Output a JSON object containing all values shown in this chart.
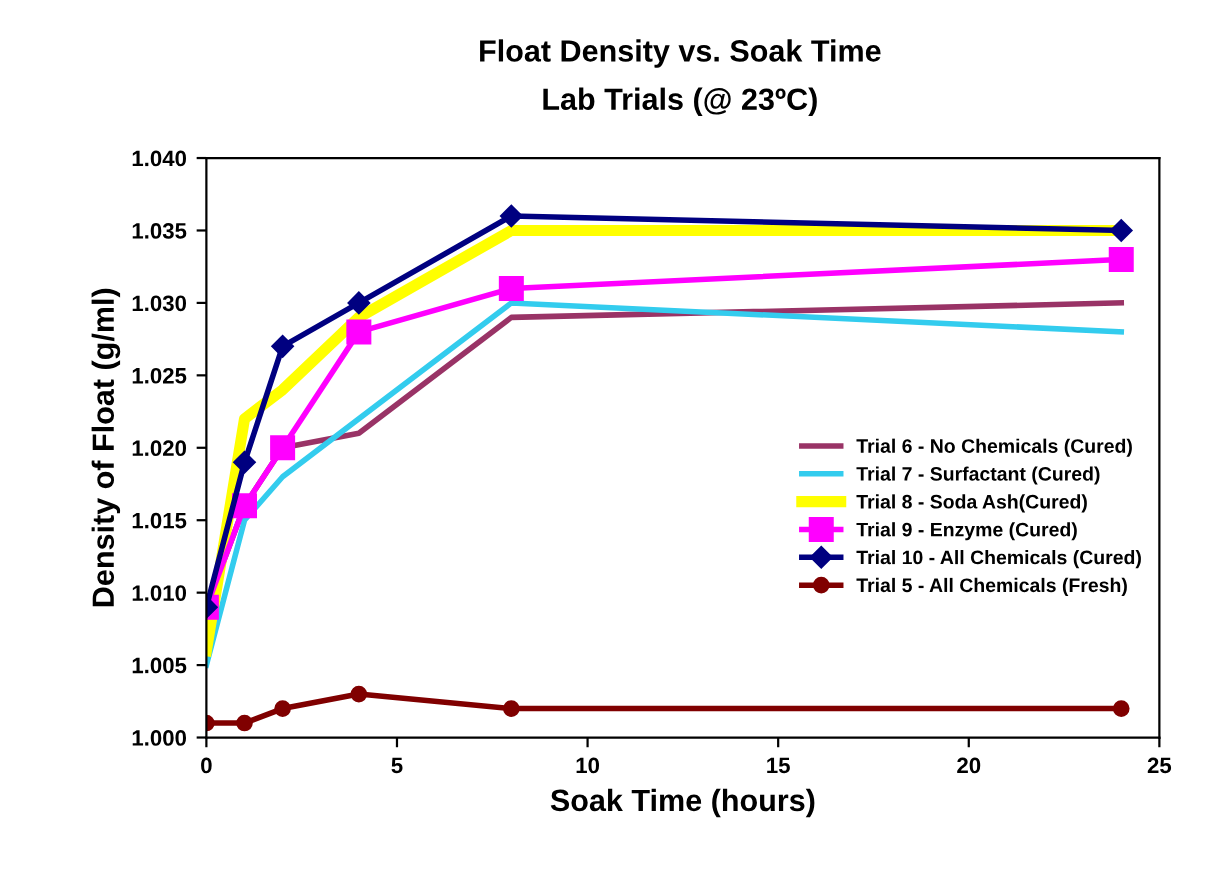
{
  "chart_data": {
    "type": "line",
    "title": "Float Density vs. Soak Time",
    "subtitle": "Lab Trials (@ 23ºC)",
    "xlabel": "Soak Time (hours)",
    "ylabel": "Density of Float (g/ml)",
    "x": [
      0,
      1,
      2,
      4,
      8,
      24
    ],
    "series": [
      {
        "name": "Trial 6 - No Chemicals (Cured)",
        "color": "#993366",
        "marker": "none",
        "values": [
          1.009,
          1.016,
          1.02,
          1.021,
          1.029,
          1.03
        ]
      },
      {
        "name": "Trial 7 - Surfactant (Cured)",
        "color": "#33ccee",
        "marker": "none",
        "values": [
          1.005,
          1.015,
          1.018,
          1.022,
          1.03,
          1.028
        ]
      },
      {
        "name": "Trial 8 - Soda Ash(Cured)",
        "color": "#ffff00",
        "marker": "none",
        "values": [
          1.006,
          1.022,
          1.024,
          1.029,
          1.035,
          1.035
        ]
      },
      {
        "name": "Trial 9 - Enzyme (Cured)",
        "color": "#ff00ff",
        "marker": "square",
        "values": [
          1.009,
          1.016,
          1.02,
          1.028,
          1.031,
          1.033
        ]
      },
      {
        "name": "Trial 10 - All Chemicals (Cured)",
        "color": "#000080",
        "marker": "diamond",
        "values": [
          1.009,
          1.019,
          1.027,
          1.03,
          1.036,
          1.035
        ]
      },
      {
        "name": "Trial 5 - All Chemicals (Fresh)",
        "color": "#800000",
        "marker": "circle",
        "values": [
          1.001,
          1.001,
          1.002,
          1.003,
          1.002,
          1.002
        ]
      }
    ],
    "xlim": [
      0,
      25
    ],
    "xticks": [
      0,
      5,
      10,
      15,
      20,
      25
    ],
    "ylim": [
      1.0,
      1.04
    ],
    "yticks": [
      {
        "value": 1.0,
        "label": "1.000"
      },
      {
        "value": 1.005,
        "label": "1.005"
      },
      {
        "value": 1.01,
        "label": "1.010"
      },
      {
        "value": 1.015,
        "label": "1.015"
      },
      {
        "value": 1.02,
        "label": "1.020"
      },
      {
        "value": 1.025,
        "label": "1.025"
      },
      {
        "value": 1.03,
        "label": "1.030"
      },
      {
        "value": 1.035,
        "label": "1.035"
      },
      {
        "value": 1.04,
        "label": "1.040"
      }
    ],
    "legend": "right",
    "grid": false
  }
}
